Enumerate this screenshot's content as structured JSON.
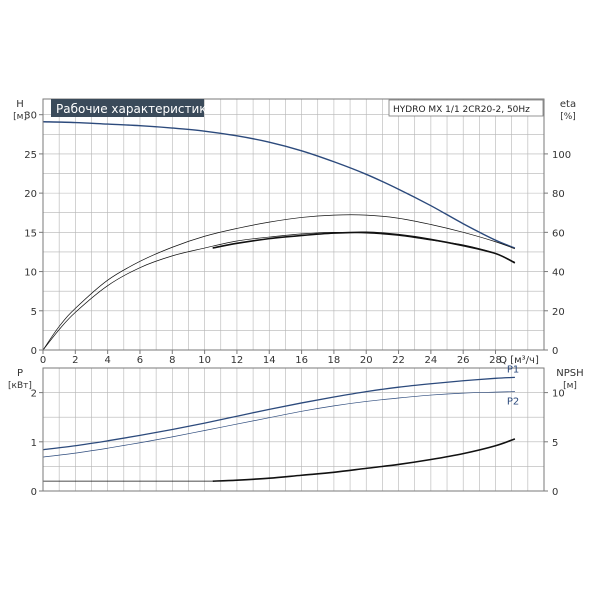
{
  "colors": {
    "blue": "#2c4a7c",
    "black": "#111111",
    "grid": "#b5b5b5",
    "title_bg": "#3a4a5a"
  },
  "chart_data": [
    {
      "type": "line",
      "title": "Рабочие характеристики",
      "model": "HYDRO MX 1/1 2CR20-2, 50Hz",
      "xlabel": "Q [м³/ч]",
      "ylabel": "H",
      "ylabel_unit": "[м]",
      "y2label": "eta",
      "y2label_unit": "[%]",
      "xlim": [
        0,
        31
      ],
      "ylim": [
        0,
        32
      ],
      "y2lim": [
        0,
        128
      ],
      "x_ticks": [
        0,
        2,
        4,
        6,
        8,
        10,
        12,
        14,
        16,
        18,
        20,
        22,
        24,
        26,
        28
      ],
      "y_ticks": [
        0,
        5,
        10,
        15,
        20,
        25,
        30
      ],
      "y2_ticks": [
        0,
        20,
        40,
        60,
        80,
        100
      ],
      "grid": true,
      "series": [
        {
          "axis": "left",
          "color": "blue",
          "width": 1.4,
          "x": [
            0,
            2,
            4,
            6,
            8,
            10,
            12,
            14,
            16,
            18,
            20,
            22,
            24,
            26,
            28,
            29.2
          ],
          "values": [
            29.1,
            29.0,
            28.8,
            28.6,
            28.3,
            27.9,
            27.3,
            26.5,
            25.4,
            24.0,
            22.4,
            20.5,
            18.4,
            16.1,
            14.0,
            13.0
          ]
        },
        {
          "axis": "left",
          "color": "black",
          "width": 0.7,
          "x": [
            0,
            1,
            2,
            4,
            6,
            8,
            10,
            12,
            14,
            16,
            18,
            20,
            22,
            24,
            26,
            28,
            29.2
          ],
          "values": [
            0,
            3.0,
            5.3,
            8.9,
            11.3,
            13.1,
            14.5,
            15.5,
            16.3,
            16.9,
            17.2,
            17.2,
            16.8,
            16.0,
            15.0,
            13.8,
            12.9
          ]
        },
        {
          "axis": "left",
          "color": "black",
          "width": 0.7,
          "x": [
            0,
            1,
            2,
            4,
            6,
            8,
            10,
            12,
            14,
            16,
            18,
            20,
            22,
            24,
            26,
            28,
            29.2
          ],
          "values": [
            0,
            2.6,
            4.8,
            8.2,
            10.5,
            12.0,
            13.0,
            13.9,
            14.4,
            14.8,
            15.0,
            14.9,
            14.6,
            14.0,
            13.4,
            12.3,
            11.2
          ]
        },
        {
          "axis": "left",
          "color": "black",
          "width": 1.6,
          "x": [
            10.5,
            12,
            14,
            16,
            18,
            20,
            22,
            24,
            26,
            28,
            29.2
          ],
          "values": [
            13.0,
            13.6,
            14.2,
            14.6,
            14.9,
            15.0,
            14.7,
            14.1,
            13.3,
            12.3,
            11.1
          ]
        }
      ]
    },
    {
      "type": "line",
      "ylabel": "P",
      "ylabel_unit": "[кВт]",
      "y2label": "NPSH",
      "y2label_unit": "[м]",
      "xlim": [
        0,
        31
      ],
      "ylim": [
        0,
        2.5
      ],
      "y2lim": [
        0,
        12.5
      ],
      "y_ticks": [
        0,
        1,
        2
      ],
      "y2_ticks": [
        0,
        5,
        10
      ],
      "grid": true,
      "series": [
        {
          "name": "P1",
          "axis": "left",
          "color": "blue",
          "width": 1.3,
          "x": [
            0,
            2,
            4,
            6,
            8,
            10,
            12,
            14,
            16,
            18,
            20,
            22,
            24,
            26,
            28,
            29.2
          ],
          "values": [
            0.84,
            0.92,
            1.02,
            1.13,
            1.25,
            1.38,
            1.52,
            1.66,
            1.79,
            1.91,
            2.02,
            2.11,
            2.18,
            2.24,
            2.29,
            2.31
          ]
        },
        {
          "name": "P2",
          "axis": "left",
          "color": "blue",
          "width": 0.7,
          "x": [
            0,
            2,
            4,
            6,
            8,
            10,
            12,
            14,
            16,
            18,
            20,
            22,
            24,
            26,
            28,
            29.2
          ],
          "values": [
            0.69,
            0.77,
            0.87,
            0.98,
            1.1,
            1.23,
            1.36,
            1.49,
            1.62,
            1.73,
            1.82,
            1.89,
            1.95,
            1.99,
            2.01,
            2.02
          ]
        },
        {
          "axis": "right",
          "color": "black",
          "width": 0.8,
          "x": [
            0,
            4,
            8,
            10.5
          ],
          "values": [
            1.0,
            1.0,
            1.0,
            1.0
          ]
        },
        {
          "axis": "right",
          "color": "black",
          "width": 1.6,
          "x": [
            10.5,
            12,
            14,
            16,
            18,
            20,
            22,
            24,
            26,
            28,
            29.2
          ],
          "values": [
            1.0,
            1.1,
            1.3,
            1.6,
            1.9,
            2.3,
            2.7,
            3.2,
            3.8,
            4.6,
            5.3
          ]
        }
      ]
    }
  ]
}
